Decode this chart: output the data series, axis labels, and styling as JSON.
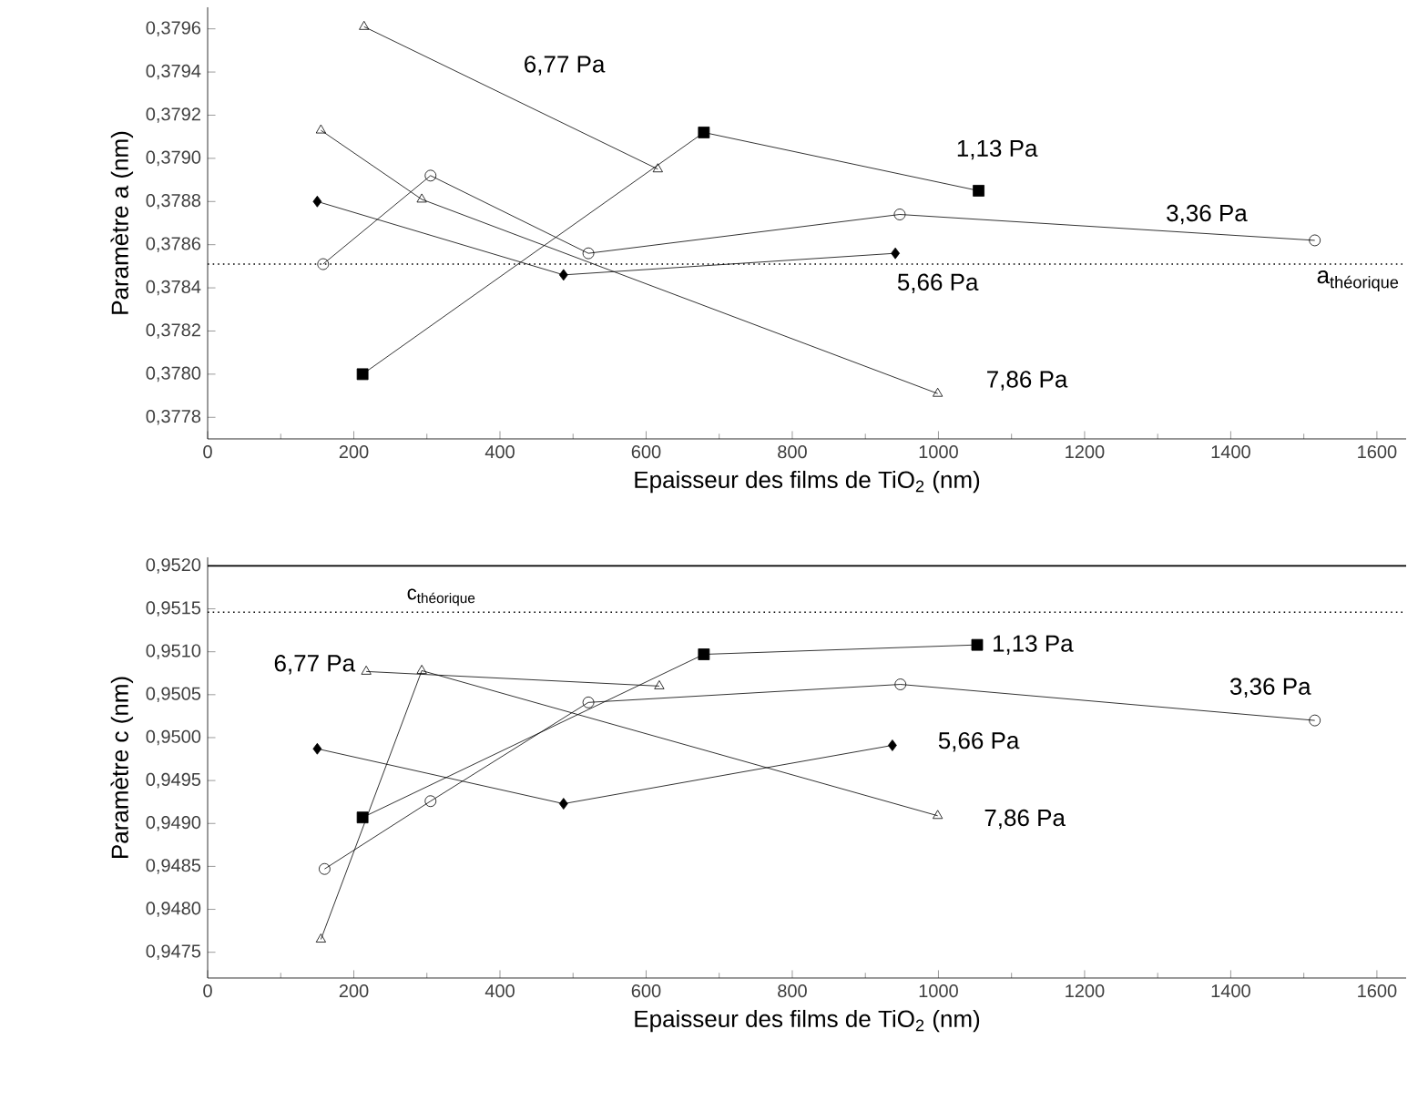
{
  "chart_data": [
    {
      "type": "line",
      "xlabel": "Epaisseur des films de TiO$_{2}$ (nm)",
      "ylabel": "Paramètre a (nm)",
      "xlim": [
        0,
        1640
      ],
      "xticks": [
        0,
        200,
        400,
        600,
        800,
        1000,
        1200,
        1400,
        1600
      ],
      "ylim": [
        0.3777,
        0.3797
      ],
      "yticks": [
        {
          "value": 0.3778,
          "label": "0,3778"
        },
        {
          "value": 0.378,
          "label": "0,3780"
        },
        {
          "value": 0.3782,
          "label": "0,3782"
        },
        {
          "value": 0.3784,
          "label": "0,3784"
        },
        {
          "value": 0.3786,
          "label": "0,3786"
        },
        {
          "value": 0.3788,
          "label": "0,3788"
        },
        {
          "value": 0.379,
          "label": "0,3790"
        },
        {
          "value": 0.3792,
          "label": "0,3792"
        },
        {
          "value": 0.3794,
          "label": "0,3794"
        },
        {
          "value": 0.3796,
          "label": "0,3796"
        }
      ],
      "series": [
        {
          "name": "1,13 Pa",
          "color": "#000000",
          "marker": "square",
          "x": [
            212,
            679,
            1055
          ],
          "values": [
            0.378,
            0.37912,
            0.37885
          ]
        },
        {
          "name": "6,77 Pa",
          "color": "#000000",
          "marker": "triangle",
          "x": [
            214,
            616
          ],
          "values": [
            0.37961,
            0.37895
          ]
        },
        {
          "name": "3,36 Pa",
          "color": "#000000",
          "marker": "circle",
          "x": [
            158,
            305,
            521,
            947,
            1515
          ],
          "values": [
            0.37851,
            0.37892,
            0.37856,
            0.37874,
            0.37862
          ]
        },
        {
          "name": "5,66 Pa",
          "color": "#000000",
          "marker": "diamond",
          "x": [
            150,
            487,
            941
          ],
          "values": [
            0.3788,
            0.37846,
            0.37856
          ]
        },
        {
          "name": "7,86 Pa",
          "color": "#000000",
          "marker": "triangle",
          "x": [
            155,
            293,
            999
          ],
          "values": [
            0.37913,
            0.37881,
            0.37791
          ]
        }
      ],
      "ref_lines": [
        {
          "axis": "y",
          "value": 0.37851,
          "label": "\\mathrm{a}_{\\text{théorique}}",
          "line_style": "dotted"
        }
      ]
    },
    {
      "type": "line",
      "xlabel": "Epaisseur des films de TiO$_{2}$ (nm)",
      "ylabel": "Paramètre c (nm)",
      "xlim": [
        0,
        1640
      ],
      "xticks": [
        0,
        200,
        400,
        600,
        800,
        1000,
        1200,
        1400,
        1600
      ],
      "ylim": [
        0.9472,
        0.9521
      ],
      "yticks": [
        {
          "value": 0.9475,
          "label": "0,9475"
        },
        {
          "value": 0.948,
          "label": "0,9480"
        },
        {
          "value": 0.9485,
          "label": "0,9485"
        },
        {
          "value": 0.949,
          "label": "0,9490"
        },
        {
          "value": 0.9495,
          "label": "0,9495"
        },
        {
          "value": 0.95,
          "label": "0,9500"
        },
        {
          "value": 0.9505,
          "label": "0,9505"
        },
        {
          "value": 0.951,
          "label": "0,9510"
        },
        {
          "value": 0.9515,
          "label": "0,9515"
        },
        {
          "value": 0.952,
          "label": "0,9520"
        }
      ],
      "series": [
        {
          "name": "1,13 Pa",
          "color": "#000000",
          "marker": "square",
          "x": [
            212,
            679,
            1053
          ],
          "values": [
            0.94907,
            0.95097,
            0.95108
          ]
        },
        {
          "name": "6,77 Pa",
          "color": "#000000",
          "marker": "triangle",
          "x": [
            217,
            618
          ],
          "values": [
            0.95077,
            0.9506
          ]
        },
        {
          "name": "3,36 Pa",
          "color": "#000000",
          "marker": "circle",
          "x": [
            160,
            305,
            521,
            948,
            1515
          ],
          "values": [
            0.94847,
            0.94926,
            0.95041,
            0.95062,
            0.9502
          ]
        },
        {
          "name": "5,66 Pa",
          "color": "#000000",
          "marker": "diamond",
          "x": [
            150,
            487,
            937
          ],
          "values": [
            0.94987,
            0.94923,
            0.94991
          ]
        },
        {
          "name": "7,86 Pa",
          "color": "#000000",
          "marker": "triangle",
          "x": [
            155,
            293,
            999
          ],
          "values": [
            0.94765,
            0.95078,
            0.94909
          ]
        }
      ],
      "ref_lines": [
        {
          "axis": "y",
          "value": 0.95146,
          "label": "\\mathrm{c}_{\\text{théorique}}",
          "line_style": "dotted"
        },
        {
          "axis": "y",
          "value": 0.952,
          "line_style": "solid"
        }
      ]
    }
  ]
}
